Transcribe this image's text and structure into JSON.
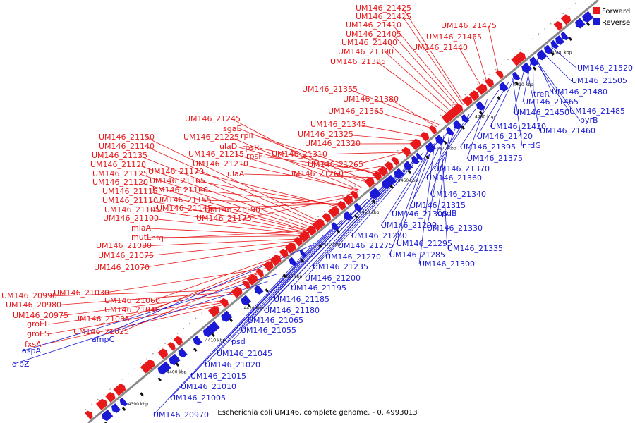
{
  "caption": "Escherichia coli UM146, complete genome. - 0..4993013",
  "legend": [
    {
      "label": "Forward",
      "color": "#e8191b"
    },
    {
      "label": "Reverse",
      "color": "#1a1ad6"
    }
  ],
  "colors": {
    "forward": "#e8191b",
    "reverse": "#1a1ad6",
    "backbone": "#8a8a8a"
  },
  "ticks": [
    "4390 kbp",
    "4400 kbp",
    "4410 kbp",
    "4420 kbp",
    "4430 kbp",
    "4440 kbp",
    "4450 kbp",
    "4460 kbp",
    "4470 kbp",
    "4480 kbp",
    "4490 kbp",
    "4500 kbp"
  ],
  "forward_labels": [
    "UM146_21425",
    "UM146_21415",
    "UM146_21410",
    "UM146_21405",
    "UM146_21400",
    "UM146_21390",
    "UM146_21385",
    "UM146_21475",
    "UM146_21455",
    "UM146_21440",
    "UM146_21355",
    "UM146_21380",
    "UM146_21365",
    "UM146_21345",
    "UM146_21325",
    "UM146_21320",
    "UM146_21310",
    "UM146_21265",
    "UM146_21260",
    "UM146_21245",
    "sgaE",
    "UM146_21225",
    "rplI",
    "ulaD",
    "rpsR",
    "UM146_21215",
    "rpsF",
    "UM146_21210",
    "ulaA",
    "UM146_21150",
    "UM146_21140",
    "UM146_21135",
    "UM146_21130",
    "UM146_21125",
    "UM146_21170",
    "UM146_21120",
    "UM146_21165",
    "UM146_21115",
    "UM146_21160",
    "UM146_21110",
    "UM146_21155",
    "UM146_21105",
    "UM146_21145",
    "UM146_21190",
    "UM146_21100",
    "UM146_21175",
    "miaA",
    "mutL",
    "hfq",
    "UM146_21080",
    "UM146_21075",
    "UM146_21070",
    "UM146_20990",
    "UM146_21030",
    "UM146_20980",
    "UM146_21060",
    "UM146_20975",
    "UM146_21040",
    "groEL",
    "UM146_21035",
    "groES",
    "UM146_21025",
    "fxsA"
  ],
  "reverse_labels": [
    "UM146_21520",
    "UM146_21505",
    "treR",
    "UM146_21480",
    "UM146_21465",
    "UM146_21485",
    "UM146_21450",
    "pyrB",
    "UM146_21430",
    "UM146_21460",
    "UM146_21420",
    "UM146_21395",
    "nrdG",
    "UM146_21375",
    "UM146_21370",
    "UM146_21360",
    "UM146_21340",
    "UM146_21315",
    "cpdB",
    "UM146_21305",
    "UM146_21290",
    "UM146_21330",
    "UM146_21280",
    "UM146_21295",
    "UM146_21335",
    "UM146_21275",
    "UM146_21285",
    "UM146_21270",
    "UM146_21300",
    "UM146_21235",
    "UM146_21200",
    "UM146_21195",
    "UM146_21185",
    "UM146_21180",
    "UM146_21065",
    "UM146_21055",
    "psd",
    "UM146_21045",
    "ampC",
    "aspA",
    "UM146_21020",
    "UM146_21015",
    "dipZ",
    "UM146_21010",
    "UM146_21005",
    "UM146_20970"
  ]
}
